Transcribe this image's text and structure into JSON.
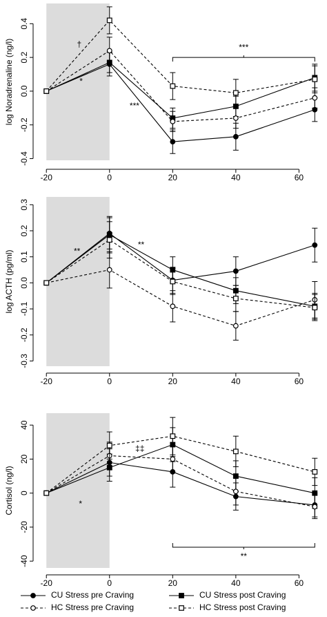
{
  "legend": [
    {
      "name": "CU Stress pre Craving",
      "marker": "circle",
      "filled": true,
      "dashed": false
    },
    {
      "name": "CU Stress post Craving",
      "marker": "square",
      "filled": true,
      "dashed": false
    },
    {
      "name": "HC Stress pre Craving",
      "marker": "circle",
      "filled": false,
      "dashed": true
    },
    {
      "name": "HC Stress post Craving",
      "marker": "square",
      "filled": false,
      "dashed": true
    }
  ],
  "chart_data": [
    {
      "type": "line",
      "y_label": "log Noradrenaline (ng/l)",
      "x": [
        -20,
        0,
        20,
        40,
        65
      ],
      "xlim": [
        -24.2,
        68
      ],
      "xticks": [
        -20,
        0,
        20,
        40,
        60
      ],
      "ylim": [
        -0.41,
        0.52
      ],
      "yticks": [
        -0.4,
        -0.2,
        0.0,
        0.2,
        0.4
      ],
      "shaded_x": [
        -20,
        0
      ],
      "series": [
        {
          "values": [
            0,
            0.16,
            -0.3,
            -0.27,
            -0.11
          ],
          "errors": [
            null,
            0.07,
            0.07,
            0.08,
            0.07
          ]
        },
        {
          "values": [
            0,
            0.17,
            -0.16,
            -0.09,
            0.08
          ],
          "errors": [
            null,
            0.06,
            0.06,
            0.06,
            0.08
          ]
        },
        {
          "values": [
            0,
            0.24,
            -0.18,
            -0.16,
            -0.04
          ],
          "errors": [
            null,
            0.08,
            0.06,
            0.06,
            0.06
          ]
        },
        {
          "values": [
            0,
            0.42,
            0.03,
            -0.01,
            0.07
          ],
          "errors": [
            null,
            0.08,
            0.08,
            0.08,
            0.08
          ]
        }
      ],
      "annotations": [
        {
          "text": "†",
          "x": -9.6,
          "y": 0.275
        },
        {
          "text": "*",
          "x": -9,
          "y": 0.055
        },
        {
          "text": "***",
          "x": 7.9,
          "y": -0.09
        }
      ],
      "brackets": [
        {
          "text": "***",
          "x": [
            20,
            65
          ],
          "y": 0.2,
          "ends": "down"
        }
      ]
    },
    {
      "type": "line",
      "y_label": "log ACTH (pg/ml)",
      "x": [
        -20,
        0,
        20,
        40,
        65
      ],
      "xlim": [
        -24.2,
        68
      ],
      "xticks": [
        -20,
        0,
        20,
        40,
        60
      ],
      "ylim": [
        -0.32,
        0.33
      ],
      "yticks": [
        -0.3,
        -0.2,
        -0.1,
        0.0,
        0.1,
        0.2,
        0.3
      ],
      "shaded_x": [
        -20,
        0
      ],
      "series": [
        {
          "values": [
            0,
            0.19,
            0.01,
            0.045,
            0.145
          ],
          "errors": [
            null,
            0.06,
            0.05,
            0.055,
            0.065
          ]
        },
        {
          "values": [
            0,
            0.185,
            0.05,
            -0.03,
            -0.09
          ],
          "errors": [
            null,
            0.07,
            0.05,
            0.05,
            0.05
          ]
        },
        {
          "values": [
            0,
            0.05,
            -0.09,
            -0.165,
            -0.065
          ],
          "errors": [
            null,
            0.07,
            0.06,
            0.055,
            0.07
          ]
        },
        {
          "values": [
            0,
            0.165,
            0.005,
            -0.06,
            -0.095
          ],
          "errors": [
            null,
            0.07,
            0.05,
            0.05,
            0.05
          ]
        }
      ],
      "annotations": [
        {
          "text": "**",
          "x": -10.3,
          "y": 0.12
        },
        {
          "text": "**",
          "x": 10,
          "y": 0.145
        }
      ],
      "brackets": []
    },
    {
      "type": "line",
      "y_label": "Cortisol (ng/l)",
      "x": [
        -20,
        0,
        20,
        40,
        65
      ],
      "xlim": [
        -24.2,
        68
      ],
      "xticks": [
        -20,
        0,
        20,
        40,
        60
      ],
      "ylim": [
        -44,
        47
      ],
      "yticks": [
        -40,
        -20,
        0,
        20,
        40
      ],
      "shaded_x": [
        -20,
        0
      ],
      "series": [
        {
          "values": [
            0,
            18,
            12.5,
            -2,
            -7
          ],
          "errors": [
            null,
            8,
            9,
            8,
            7
          ]
        },
        {
          "values": [
            0,
            15,
            28.5,
            10,
            0
          ],
          "errors": [
            null,
            8,
            10,
            9,
            9
          ]
        },
        {
          "values": [
            0,
            22,
            20,
            1,
            -8
          ],
          "errors": [
            null,
            8,
            8,
            8,
            7
          ]
        },
        {
          "values": [
            0,
            28,
            33.5,
            24.5,
            12.5
          ],
          "errors": [
            null,
            8,
            11,
            9,
            8
          ]
        }
      ],
      "annotations": [
        {
          "text": "*",
          "x": -9.2,
          "y": -6.5
        },
        {
          "text": "‡‡",
          "x": 9.6,
          "y": 26
        }
      ],
      "brackets": [
        {
          "text": "**",
          "x": [
            20,
            65
          ],
          "y": -31.8,
          "ends": "up"
        }
      ]
    }
  ]
}
